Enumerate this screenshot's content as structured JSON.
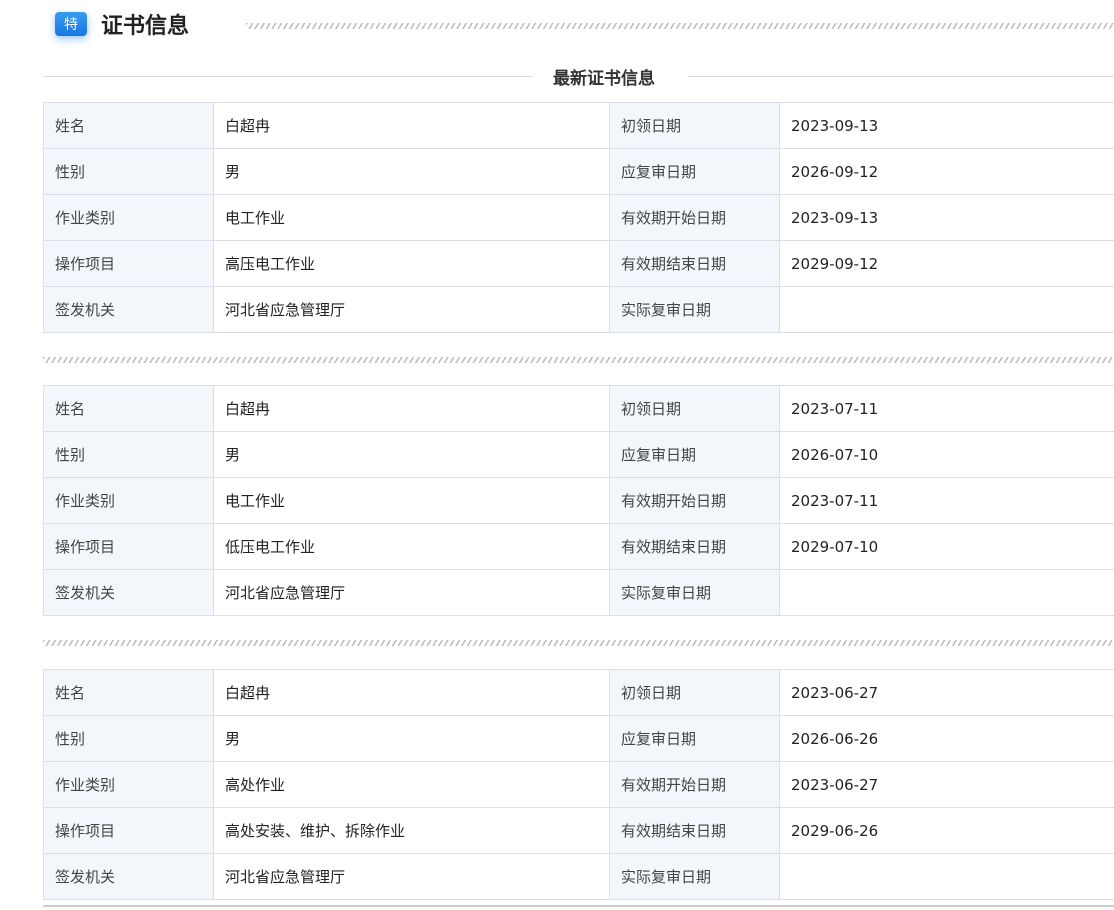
{
  "header": {
    "badge": "特",
    "title": "证书信息"
  },
  "subtitle": "最新证书信息",
  "labels": {
    "name": "姓名",
    "gender": "性别",
    "category": "作业类别",
    "item": "操作项目",
    "issuer": "签发机关",
    "first_date": "初领日期",
    "review_due": "应复审日期",
    "valid_start": "有效期开始日期",
    "valid_end": "有效期结束日期",
    "actual_review": "实际复审日期"
  },
  "certificates": [
    {
      "name": "白超冉",
      "gender": "男",
      "category": "电工作业",
      "item": "高压电工作业",
      "issuer": "河北省应急管理厅",
      "first_date": "2023-09-13",
      "review_due": "2026-09-12",
      "valid_start": "2023-09-13",
      "valid_end": "2029-09-12",
      "actual_review": ""
    },
    {
      "name": "白超冉",
      "gender": "男",
      "category": "电工作业",
      "item": "低压电工作业",
      "issuer": "河北省应急管理厅",
      "first_date": "2023-07-11",
      "review_due": "2026-07-10",
      "valid_start": "2023-07-11",
      "valid_end": "2029-07-10",
      "actual_review": ""
    },
    {
      "name": "白超冉",
      "gender": "男",
      "category": "高处作业",
      "item": "高处安装、维护、拆除作业",
      "issuer": "河北省应急管理厅",
      "first_date": "2023-06-27",
      "review_due": "2026-06-26",
      "valid_start": "2023-06-27",
      "valid_end": "2029-06-26",
      "actual_review": ""
    }
  ]
}
